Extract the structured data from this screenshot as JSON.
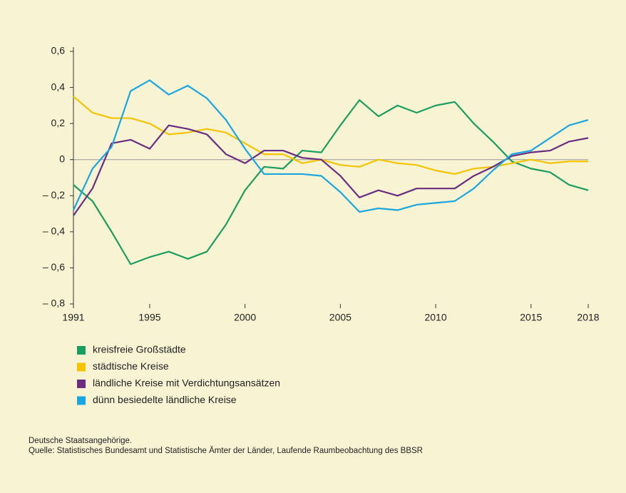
{
  "chart_data": {
    "type": "line",
    "x": [
      1991,
      1992,
      1993,
      1994,
      1995,
      1996,
      1997,
      1998,
      1999,
      2000,
      2001,
      2002,
      2003,
      2004,
      2005,
      2006,
      2007,
      2008,
      2009,
      2010,
      2011,
      2012,
      2013,
      2014,
      2015,
      2016,
      2017,
      2018
    ],
    "series": [
      {
        "name": "kreisfreie Großstädte",
        "color": "#1a9e5f",
        "values": [
          -0.14,
          -0.23,
          -0.4,
          -0.58,
          -0.54,
          -0.51,
          -0.55,
          -0.51,
          -0.36,
          -0.17,
          -0.04,
          -0.05,
          0.05,
          0.04,
          0.19,
          0.33,
          0.24,
          0.3,
          0.26,
          0.3,
          0.32,
          0.2,
          0.1,
          -0.01,
          -0.05,
          -0.07,
          -0.14,
          -0.17
        ]
      },
      {
        "name": "städtische Kreise",
        "color": "#f5c400",
        "values": [
          0.35,
          0.26,
          0.23,
          0.23,
          0.2,
          0.14,
          0.15,
          0.17,
          0.15,
          0.09,
          0.03,
          0.03,
          -0.02,
          0.0,
          -0.03,
          -0.04,
          0.0,
          -0.02,
          -0.03,
          -0.06,
          -0.08,
          -0.05,
          -0.04,
          -0.02,
          0.0,
          -0.02,
          -0.01,
          -0.01
        ]
      },
      {
        "name": "ländliche Kreise mit Verdichtungsansätzen",
        "color": "#6b2d82",
        "values": [
          -0.31,
          -0.16,
          0.09,
          0.11,
          0.06,
          0.19,
          0.17,
          0.14,
          0.03,
          -0.02,
          0.05,
          0.05,
          0.01,
          0.0,
          -0.09,
          -0.21,
          -0.17,
          -0.2,
          -0.16,
          -0.16,
          -0.16,
          -0.09,
          -0.04,
          0.02,
          0.04,
          0.05,
          0.1,
          0.12
        ]
      },
      {
        "name": "dünn besiedelte ländliche Kreise",
        "color": "#1aa6e0",
        "values": [
          -0.28,
          -0.05,
          0.07,
          0.38,
          0.44,
          0.36,
          0.41,
          0.34,
          0.22,
          0.06,
          -0.08,
          -0.08,
          -0.08,
          -0.09,
          -0.18,
          -0.29,
          -0.27,
          -0.28,
          -0.25,
          -0.24,
          -0.23,
          -0.16,
          -0.06,
          0.03,
          0.05,
          0.12,
          0.19,
          0.22
        ]
      }
    ],
    "xlim": [
      1991,
      2018
    ],
    "xticks": [
      1991,
      1995,
      2000,
      2005,
      2010,
      2015,
      2018
    ],
    "ylim": [
      -0.8,
      0.6
    ],
    "yticks": [
      {
        "value": 0.6,
        "label": "0,6"
      },
      {
        "value": 0.4,
        "label": "0,4"
      },
      {
        "value": 0.2,
        "label": "0,2"
      },
      0,
      {
        "value": -0.2,
        "label": "– 0,2"
      },
      {
        "value": -0.4,
        "label": "– 0,4"
      },
      {
        "value": -0.6,
        "label": "– 0,6"
      },
      {
        "value": -0.8,
        "label": "– 0,8"
      }
    ],
    "grid": false,
    "notes": [
      "Deutsche Staatsangehörige.",
      "Quelle: Statistisches Bundesamt und Statistische Ämter der Länder, Laufende Raumbeobachtung des BBSR"
    ]
  }
}
